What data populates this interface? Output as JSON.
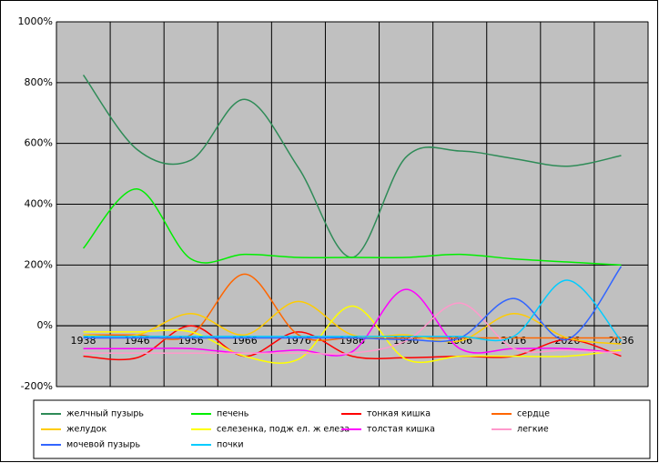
{
  "chart_data": {
    "type": "line",
    "categories": [
      "1938",
      "1946",
      "1956",
      "1966",
      "1976",
      "1986",
      "1996",
      "2006",
      "2016",
      "2026",
      "2036"
    ],
    "ylim": [
      -200,
      1000
    ],
    "yticks": [
      {
        "value": -200,
        "label": "-200%"
      },
      {
        "value": 0,
        "label": "0%"
      },
      {
        "value": 200,
        "label": "200%"
      },
      {
        "value": 400,
        "label": "400%"
      },
      {
        "value": 600,
        "label": "600%"
      },
      {
        "value": 800,
        "label": "800%"
      },
      {
        "value": 1000,
        "label": "1000%"
      }
    ],
    "grid": true,
    "smooth": true,
    "legend": "bottom",
    "series": [
      {
        "name": "желчный пузырь",
        "color": "#2e8b57",
        "values": [
          825,
          580,
          545,
          745,
          520,
          225,
          555,
          575,
          550,
          525,
          560
        ]
      },
      {
        "name": "печень",
        "color": "#00ee00",
        "values": [
          255,
          450,
          220,
          235,
          225,
          225,
          225,
          235,
          220,
          210,
          200
        ]
      },
      {
        "name": "тонкая кишка",
        "color": "#ff0000",
        "values": [
          -100,
          -105,
          0,
          -100,
          -20,
          -100,
          -105,
          -100,
          -100,
          -45,
          -100
        ]
      },
      {
        "name": "сердце",
        "color": "#ff6600",
        "values": [
          -30,
          -30,
          -30,
          170,
          -30,
          -40,
          -40,
          -40,
          -40,
          -40,
          -40
        ]
      },
      {
        "name": "желудок",
        "color": "#ffcc00",
        "values": [
          -30,
          -30,
          40,
          -30,
          80,
          -30,
          -30,
          -50,
          40,
          -40,
          -60
        ]
      },
      {
        "name": "селезенка, подж ел. ж елеза",
        "color": "#ffff00",
        "values": [
          -20,
          -20,
          -20,
          -100,
          -110,
          65,
          -110,
          -100,
          -100,
          -100,
          -80
        ]
      },
      {
        "name": "толстая кишка",
        "color": "#ff00ff",
        "values": [
          -75,
          -75,
          -75,
          -90,
          -80,
          -85,
          120,
          -75,
          -75,
          -75,
          -90
        ]
      },
      {
        "name": "легкие",
        "color": "#ff99cc",
        "values": [
          -90,
          -90,
          -90,
          -90,
          -90,
          -90,
          -50,
          75,
          -75,
          -80,
          -90
        ]
      },
      {
        "name": "мочевой пузырь",
        "color": "#3366ff",
        "values": [
          -40,
          -40,
          -40,
          -40,
          -40,
          -40,
          -45,
          -40,
          90,
          -45,
          195
        ]
      },
      {
        "name": "почки",
        "color": "#00ccff",
        "values": [
          -35,
          -35,
          -35,
          -35,
          -35,
          -35,
          -35,
          -35,
          -35,
          150,
          -50
        ]
      }
    ]
  }
}
